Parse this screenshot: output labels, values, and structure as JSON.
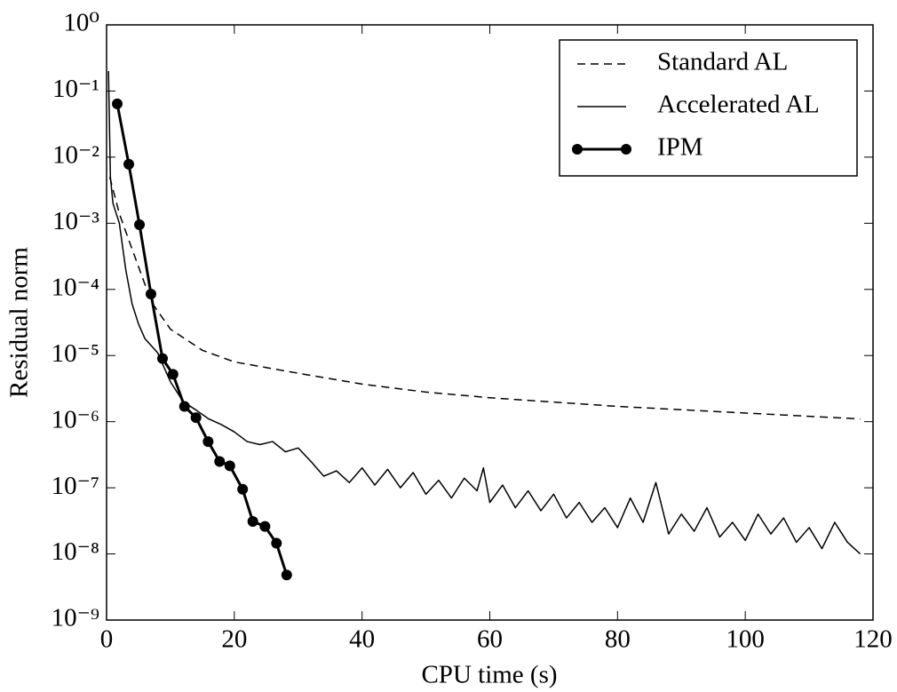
{
  "chart_data": {
    "type": "line",
    "x_label": "CPU time (s)",
    "y_label": "Residual norm",
    "xlim": [
      0,
      120
    ],
    "xticks": [
      0,
      20,
      40,
      60,
      80,
      100,
      120
    ],
    "ylim": [
      1e-09,
      1
    ],
    "yscale": "log",
    "yticks": [
      {
        "value": 1,
        "label": "10⁰"
      },
      {
        "value": 0.1,
        "label": "10⁻¹"
      },
      {
        "value": 0.01,
        "label": "10⁻²"
      },
      {
        "value": 0.001,
        "label": "10⁻³"
      },
      {
        "value": 0.0001,
        "label": "10⁻⁴"
      },
      {
        "value": 1e-05,
        "label": "10⁻⁵"
      },
      {
        "value": 1e-06,
        "label": "10⁻⁶"
      },
      {
        "value": 1e-07,
        "label": "10⁻⁷"
      },
      {
        "value": 1e-08,
        "label": "10⁻⁸"
      },
      {
        "value": 1e-09,
        "label": "10⁻⁹"
      }
    ],
    "legend": "upper right",
    "series": [
      {
        "name": "Standard AL",
        "color": "#000000",
        "linestyle": "dashed",
        "linewidth": 1.5,
        "marker": false,
        "x": [
          0.5,
          2,
          3,
          5,
          7,
          10,
          15,
          20,
          30,
          40,
          50,
          60,
          80,
          100,
          118
        ],
        "values": [
          0.005,
          0.0014,
          0.00075,
          0.00022,
          6.5e-05,
          2.5e-05,
          1.2e-05,
          8e-06,
          5.4e-06,
          3.7e-06,
          2.8e-06,
          2.3e-06,
          1.7e-06,
          1.35e-06,
          1.1e-06
        ]
      },
      {
        "name": "Accelerated AL",
        "color": "#000000",
        "linestyle": "solid",
        "linewidth": 1.5,
        "marker": false,
        "x": [
          0.3,
          0.6,
          1,
          2,
          3,
          4,
          5,
          6,
          8,
          10,
          12,
          14,
          16,
          18,
          20,
          22,
          24,
          26,
          28,
          30,
          32,
          34,
          36,
          38,
          40,
          42,
          44,
          46,
          48,
          50,
          52,
          54,
          56,
          58,
          59,
          60,
          62,
          64,
          66,
          68,
          70,
          72,
          74,
          76,
          78,
          80,
          82,
          84,
          86,
          88,
          90,
          92,
          94,
          96,
          98,
          100,
          102,
          104,
          106,
          108,
          110,
          112,
          114,
          116,
          118
        ],
        "values": [
          0.2,
          0.005,
          0.002,
          0.001,
          0.0002,
          6e-05,
          3e-05,
          1.8e-05,
          1.1e-05,
          4e-06,
          2e-06,
          1.5e-06,
          1.1e-06,
          9e-07,
          7e-07,
          5e-07,
          4.5e-07,
          5e-07,
          3.5e-07,
          4e-07,
          2.5e-07,
          1.5e-07,
          1.8e-07,
          1.2e-07,
          2e-07,
          1.1e-07,
          1.9e-07,
          1e-07,
          1.7e-07,
          8e-08,
          1.3e-07,
          7e-08,
          1.4e-07,
          9e-08,
          2e-07,
          6e-08,
          1.1e-07,
          5e-08,
          9e-08,
          4.5e-08,
          8e-08,
          3.5e-08,
          6e-08,
          3e-08,
          5e-08,
          2.5e-08,
          7e-08,
          3e-08,
          1.2e-07,
          2e-08,
          4e-08,
          2.2e-08,
          5e-08,
          1.8e-08,
          3e-08,
          1.6e-08,
          4e-08,
          2e-08,
          3.5e-08,
          1.5e-08,
          2.5e-08,
          1.2e-08,
          3e-08,
          1.5e-08,
          1e-08
        ]
      },
      {
        "name": "IPM",
        "color": "#000000",
        "linestyle": "solid",
        "linewidth": 3,
        "marker": true,
        "x": [
          1.67,
          3.48,
          5.15,
          6.95,
          8.76,
          10.4,
          12.2,
          14.0,
          15.9,
          17.7,
          19.3,
          21.3,
          22.9,
          24.8,
          26.6,
          28.2
        ],
        "values": [
          0.064,
          0.0078,
          0.00095,
          8.5e-05,
          9e-06,
          5.2e-06,
          1.7e-06,
          1.15e-06,
          5e-07,
          2.5e-07,
          2.15e-07,
          9.5e-08,
          3.1e-08,
          2.6e-08,
          1.45e-08,
          4.8e-09
        ]
      }
    ]
  }
}
